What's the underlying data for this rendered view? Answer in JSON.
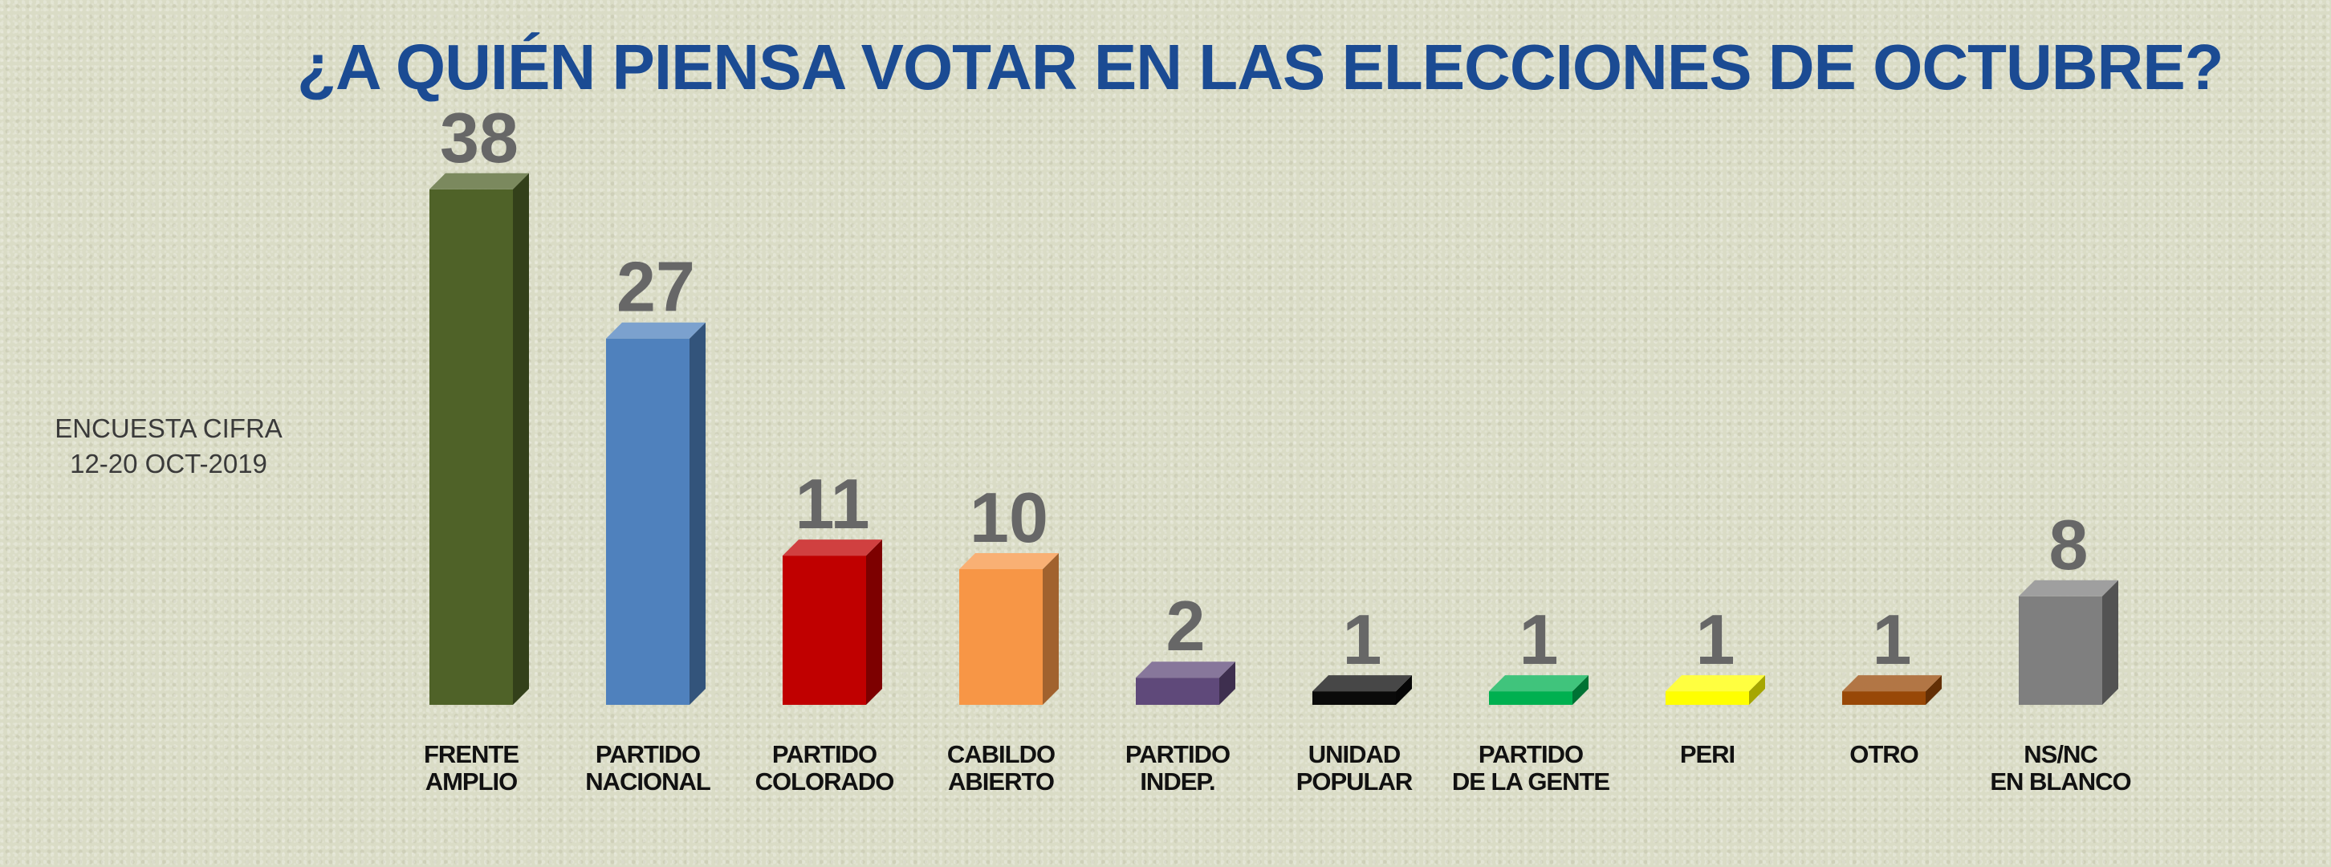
{
  "title": "¿A QUIÉN PIENSA VOTAR EN LAS ELECCIONES DE OCTUBRE?",
  "survey": {
    "line1": "ENCUESTA CIFRA",
    "line2": "12-20 OCT-2019"
  },
  "chart_data": {
    "type": "bar",
    "title": "¿A QUIÉN PIENSA VOTAR EN LAS ELECCIONES DE OCTUBRE?",
    "xlabel": "",
    "ylabel": "",
    "grid": false,
    "legend": "none",
    "ylim": [
      0,
      40
    ],
    "categories": [
      [
        "FRENTE",
        "AMPLIO"
      ],
      [
        "PARTIDO",
        "NACIONAL"
      ],
      [
        "PARTIDO",
        "COLORADO"
      ],
      [
        "CABILDO",
        "ABIERTO"
      ],
      [
        "PARTIDO",
        "INDEP."
      ],
      [
        "UNIDAD",
        "POPULAR"
      ],
      [
        "PARTIDO",
        "DE LA GENTE"
      ],
      [
        "PERI"
      ],
      [
        "OTRO"
      ],
      [
        "NS/NC",
        "EN BLANCO"
      ]
    ],
    "values": [
      38,
      27,
      11,
      10,
      2,
      1,
      1,
      1,
      1,
      8
    ],
    "colors": [
      "#4f6228",
      "#4f81bd",
      "#c00000",
      "#f79646",
      "#5f497a",
      "#0a0a0a",
      "#00b050",
      "#ffff00",
      "#984807",
      "#7f7f7f"
    ]
  }
}
